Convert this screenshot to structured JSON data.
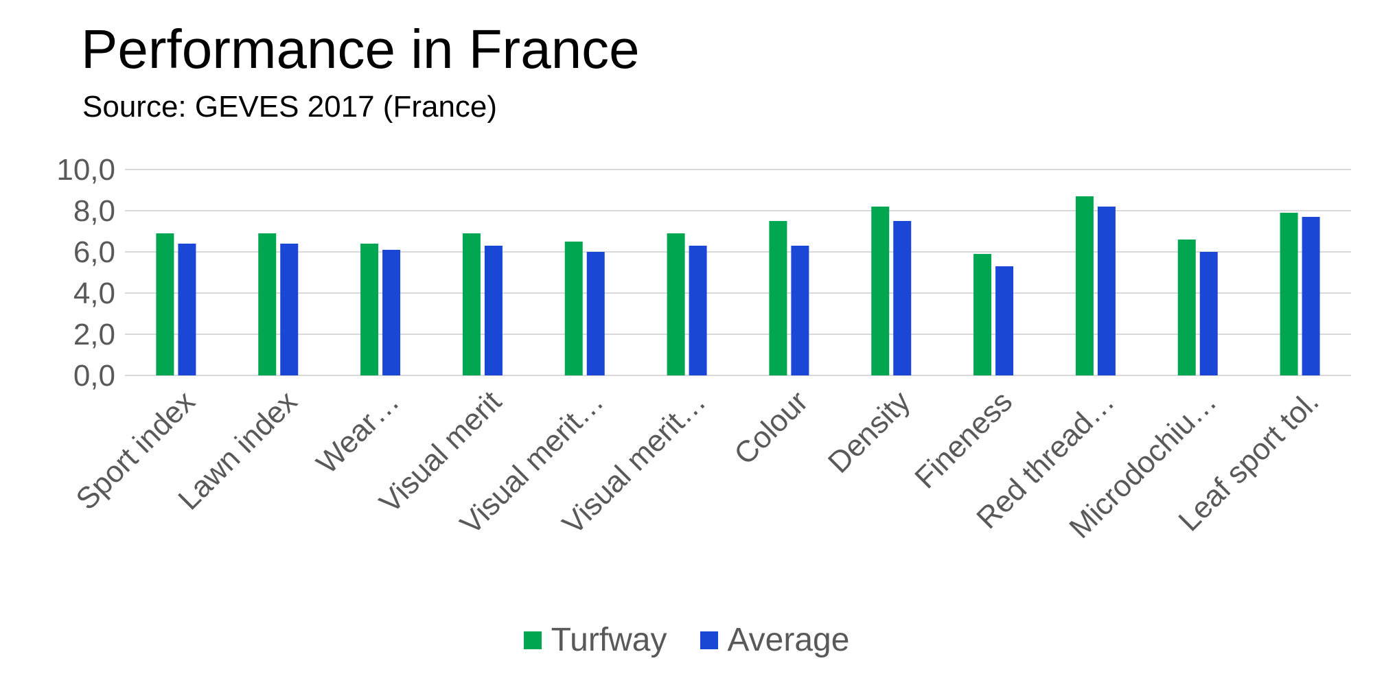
{
  "chart_data": {
    "type": "bar",
    "title": "Performance in France",
    "subtitle": "Source: GEVES 2017 (France)",
    "categories": [
      "Sport index",
      "Lawn index",
      "Wear…",
      "Visual merit",
      "Visual merit…",
      "Visual merit…",
      "Colour",
      "Density",
      "Fineness",
      "Red thread…",
      "Microdochiu…",
      "Leaf sport tol."
    ],
    "series": [
      {
        "name": "Turfway",
        "color": "#00A650",
        "values": [
          6.9,
          6.9,
          6.4,
          6.9,
          6.5,
          6.9,
          7.5,
          8.2,
          5.9,
          8.7,
          6.6,
          7.9
        ]
      },
      {
        "name": "Average",
        "color": "#1A47D6",
        "values": [
          6.4,
          6.4,
          6.1,
          6.3,
          6.0,
          6.3,
          6.3,
          7.5,
          5.3,
          8.2,
          6.0,
          7.7
        ]
      }
    ],
    "yticks": [
      "0,0",
      "2,0",
      "4,0",
      "6,0",
      "8,0",
      "10,0"
    ],
    "ylim": [
      0,
      10
    ],
    "grid": true,
    "legend": "bottom"
  }
}
